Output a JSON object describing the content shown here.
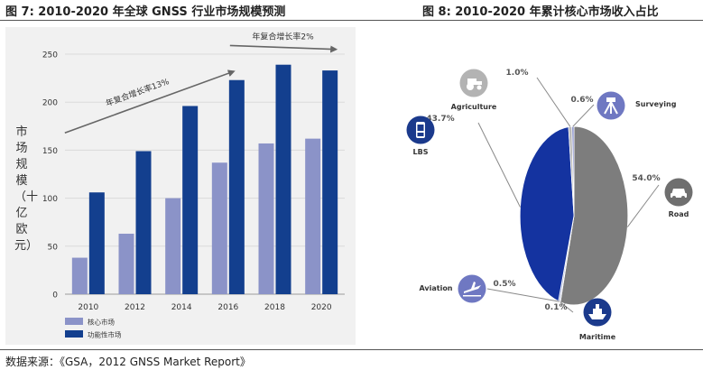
{
  "fig7_title": "图 7:   2010-2020 年全球 GNSS 行业市场规模预测",
  "fig8_title": "图 8:  2010-2020 年累计核心市场收入占比",
  "source": "数据来源：《GSA，2012 GNSS Market Report》",
  "chart_data": [
    {
      "type": "bar",
      "ylabel": "市场规模（十亿欧元）",
      "categories": [
        "2010",
        "2012",
        "2014",
        "2016",
        "2018",
        "2020"
      ],
      "ylim": [
        0,
        250
      ],
      "yticks": [
        0,
        50,
        100,
        150,
        200,
        250
      ],
      "series": [
        {
          "name": "核心市场",
          "color": "#8b93c8",
          "values": [
            38,
            63,
            100,
            137,
            157,
            162
          ]
        },
        {
          "name": "功能性市场",
          "color": "#133f8e",
          "values": [
            106,
            149,
            196,
            223,
            239,
            233
          ]
        }
      ],
      "annotations": [
        {
          "text": "年复合增长率13%"
        },
        {
          "text": "年复合增长率2%"
        }
      ],
      "legend_position": "bottom-left"
    },
    {
      "type": "pie",
      "slices": [
        {
          "label": "Road",
          "value": 54.0,
          "value_label": "54.0%",
          "color": "#7d7d7d",
          "icon": "car-icon",
          "icon_color": "#6f6f6f"
        },
        {
          "label": "Maritime",
          "value": 0.1,
          "value_label": "0.1%",
          "color": "#9aa3b8",
          "icon": "ship-icon",
          "icon_color": "#1b3a8c"
        },
        {
          "label": "Aviation",
          "value": 0.5,
          "value_label": "0.5%",
          "color": "#aab3d6",
          "icon": "plane-icon",
          "icon_color": "#6f78c2"
        },
        {
          "label": "LBS",
          "value": 43.7,
          "value_label": "43.7%",
          "color": "#1433a0",
          "icon": "phone-icon",
          "icon_color": "#1b3a8c"
        },
        {
          "label": "Agriculture",
          "value": 1.0,
          "value_label": "1.0%",
          "color": "#b9b9b9",
          "icon": "tractor-icon",
          "icon_color": "#b3b3b3"
        },
        {
          "label": "Surveying",
          "value": 0.6,
          "value_label": "0.6%",
          "color": "#7d86c6",
          "icon": "survey-tripod-icon",
          "icon_color": "#6f78c2"
        }
      ]
    }
  ]
}
